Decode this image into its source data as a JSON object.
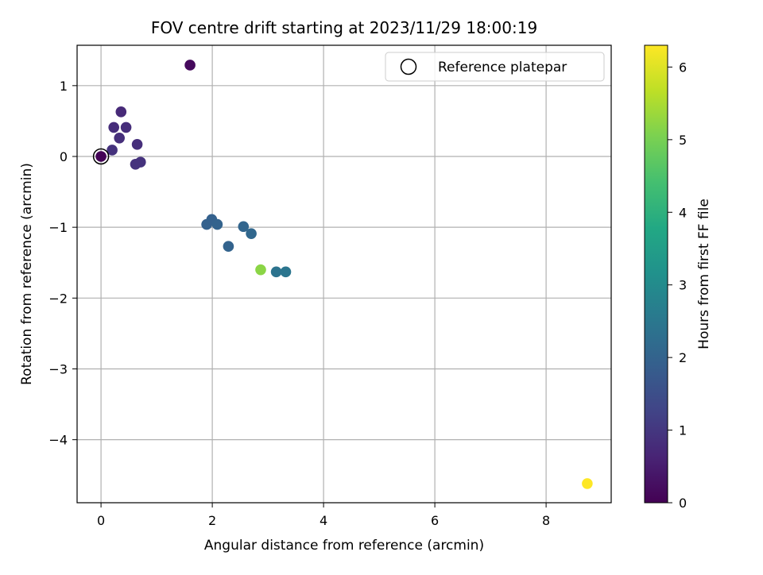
{
  "chart_data": {
    "type": "scatter",
    "title": "FOV centre drift starting at 2023/11/29 18:00:19",
    "xlabel": "Angular distance from reference (arcmin)",
    "ylabel": "Rotation from reference (arcmin)",
    "xlim": [
      -0.43,
      9.17
    ],
    "ylim": [
      -4.89,
      1.57
    ],
    "xticks": [
      0,
      2,
      4,
      6,
      8
    ],
    "yticks": [
      1,
      0,
      -1,
      -2,
      -3,
      -4
    ],
    "grid": true,
    "legend": {
      "placement": "top-right",
      "entries": [
        "Reference platepar"
      ]
    },
    "colorbar": {
      "label": "Hours from first FF file",
      "range": [
        0,
        6.3
      ],
      "ticks": [
        0,
        1,
        2,
        3,
        4,
        5,
        6
      ],
      "colormap": "viridis"
    },
    "reference_point": {
      "x": 0,
      "y": 0
    },
    "points": [
      {
        "x": 0.0,
        "y": 0.0,
        "hours": 0.05
      },
      {
        "x": 1.6,
        "y": 1.29,
        "hours": 0.15
      },
      {
        "x": 0.36,
        "y": 0.63,
        "hours": 0.75
      },
      {
        "x": 0.23,
        "y": 0.41,
        "hours": 0.8
      },
      {
        "x": 0.45,
        "y": 0.41,
        "hours": 0.8
      },
      {
        "x": 0.33,
        "y": 0.26,
        "hours": 0.85
      },
      {
        "x": 0.65,
        "y": 0.17,
        "hours": 0.85
      },
      {
        "x": 0.2,
        "y": 0.09,
        "hours": 0.9
      },
      {
        "x": 0.71,
        "y": -0.08,
        "hours": 0.9
      },
      {
        "x": 0.62,
        "y": -0.11,
        "hours": 0.9
      },
      {
        "x": 1.9,
        "y": -0.96,
        "hours": 1.95
      },
      {
        "x": 1.99,
        "y": -0.89,
        "hours": 1.95
      },
      {
        "x": 2.09,
        "y": -0.96,
        "hours": 2.0
      },
      {
        "x": 2.29,
        "y": -1.27,
        "hours": 2.0
      },
      {
        "x": 2.56,
        "y": -0.99,
        "hours": 2.05
      },
      {
        "x": 2.7,
        "y": -1.09,
        "hours": 2.1
      },
      {
        "x": 3.15,
        "y": -1.63,
        "hours": 2.4
      },
      {
        "x": 3.32,
        "y": -1.63,
        "hours": 2.45
      },
      {
        "x": 2.87,
        "y": -1.6,
        "hours": 5.2
      },
      {
        "x": 8.74,
        "y": -4.62,
        "hours": 6.3
      }
    ]
  }
}
